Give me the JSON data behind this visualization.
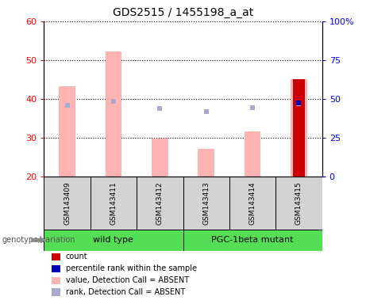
{
  "title": "GDS2515 / 1455198_a_at",
  "samples": [
    "GSM143409",
    "GSM143411",
    "GSM143412",
    "GSM143413",
    "GSM143414",
    "GSM143415"
  ],
  "pink_bar_values": [
    43.2,
    52.3,
    29.8,
    27.0,
    31.5,
    45.0
  ],
  "light_blue_rank": [
    46.0,
    48.5,
    44.0,
    41.8,
    44.5,
    47.0
  ],
  "dark_red_bar": [
    null,
    null,
    null,
    null,
    null,
    45.0
  ],
  "dark_blue_rank": [
    null,
    null,
    null,
    null,
    null,
    47.2
  ],
  "left_ylim": [
    20,
    60
  ],
  "right_ylim": [
    0,
    100
  ],
  "left_yticks": [
    20,
    30,
    40,
    50,
    60
  ],
  "right_yticks": [
    0,
    25,
    50,
    75,
    100
  ],
  "right_yticklabels": [
    "0",
    "25",
    "50",
    "75",
    "100%"
  ],
  "wild_type_indices": [
    0,
    1,
    2
  ],
  "pgc1beta_indices": [
    3,
    4,
    5
  ],
  "wild_type_label": "wild type",
  "pgc1beta_label": "PGC-1beta mutant",
  "genotype_label": "genotype/variation",
  "pink_bar_color": "#ffb3b3",
  "dark_red_color": "#cc0000",
  "light_blue_color": "#aaaacc",
  "dark_blue_color": "#0000bb",
  "gray_box_color": "#d3d3d3",
  "green_box_color": "#55dd55",
  "legend": [
    {
      "label": "count",
      "color": "#cc0000"
    },
    {
      "label": "percentile rank within the sample",
      "color": "#0000bb"
    },
    {
      "label": "value, Detection Call = ABSENT",
      "color": "#ffb3b3"
    },
    {
      "label": "rank, Detection Call = ABSENT",
      "color": "#aaaacc"
    }
  ]
}
